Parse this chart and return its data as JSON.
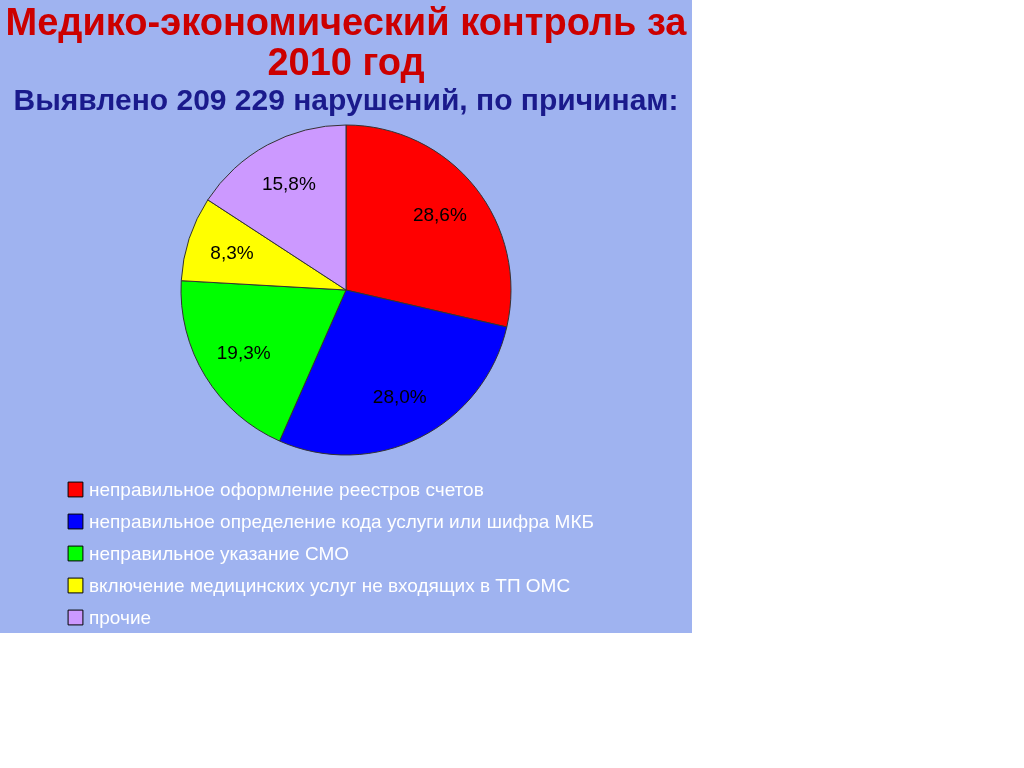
{
  "chart_data": {
    "type": "pie",
    "title": "Медико-экономический контроль за 2010 год",
    "subtitle": "Выявлено 209 229 нарушений, по причинам:",
    "categories": [
      "неправильное оформление реестров счетов",
      "неправильное определение кода услуги или шифра МКБ",
      "неправильное указание СМО",
      "включение медицинских услуг не входящих в ТП ОМС",
      "прочие"
    ],
    "values": [
      28.6,
      28.0,
      19.3,
      8.3,
      15.8
    ],
    "colors": [
      "#ff0000",
      "#0000ff",
      "#00ff00",
      "#ffff00",
      "#cc99ff"
    ],
    "value_labels": [
      "28,6%",
      "28,0%",
      "19,3%",
      "8,3%",
      "15,8%"
    ],
    "legend": "bottom"
  }
}
